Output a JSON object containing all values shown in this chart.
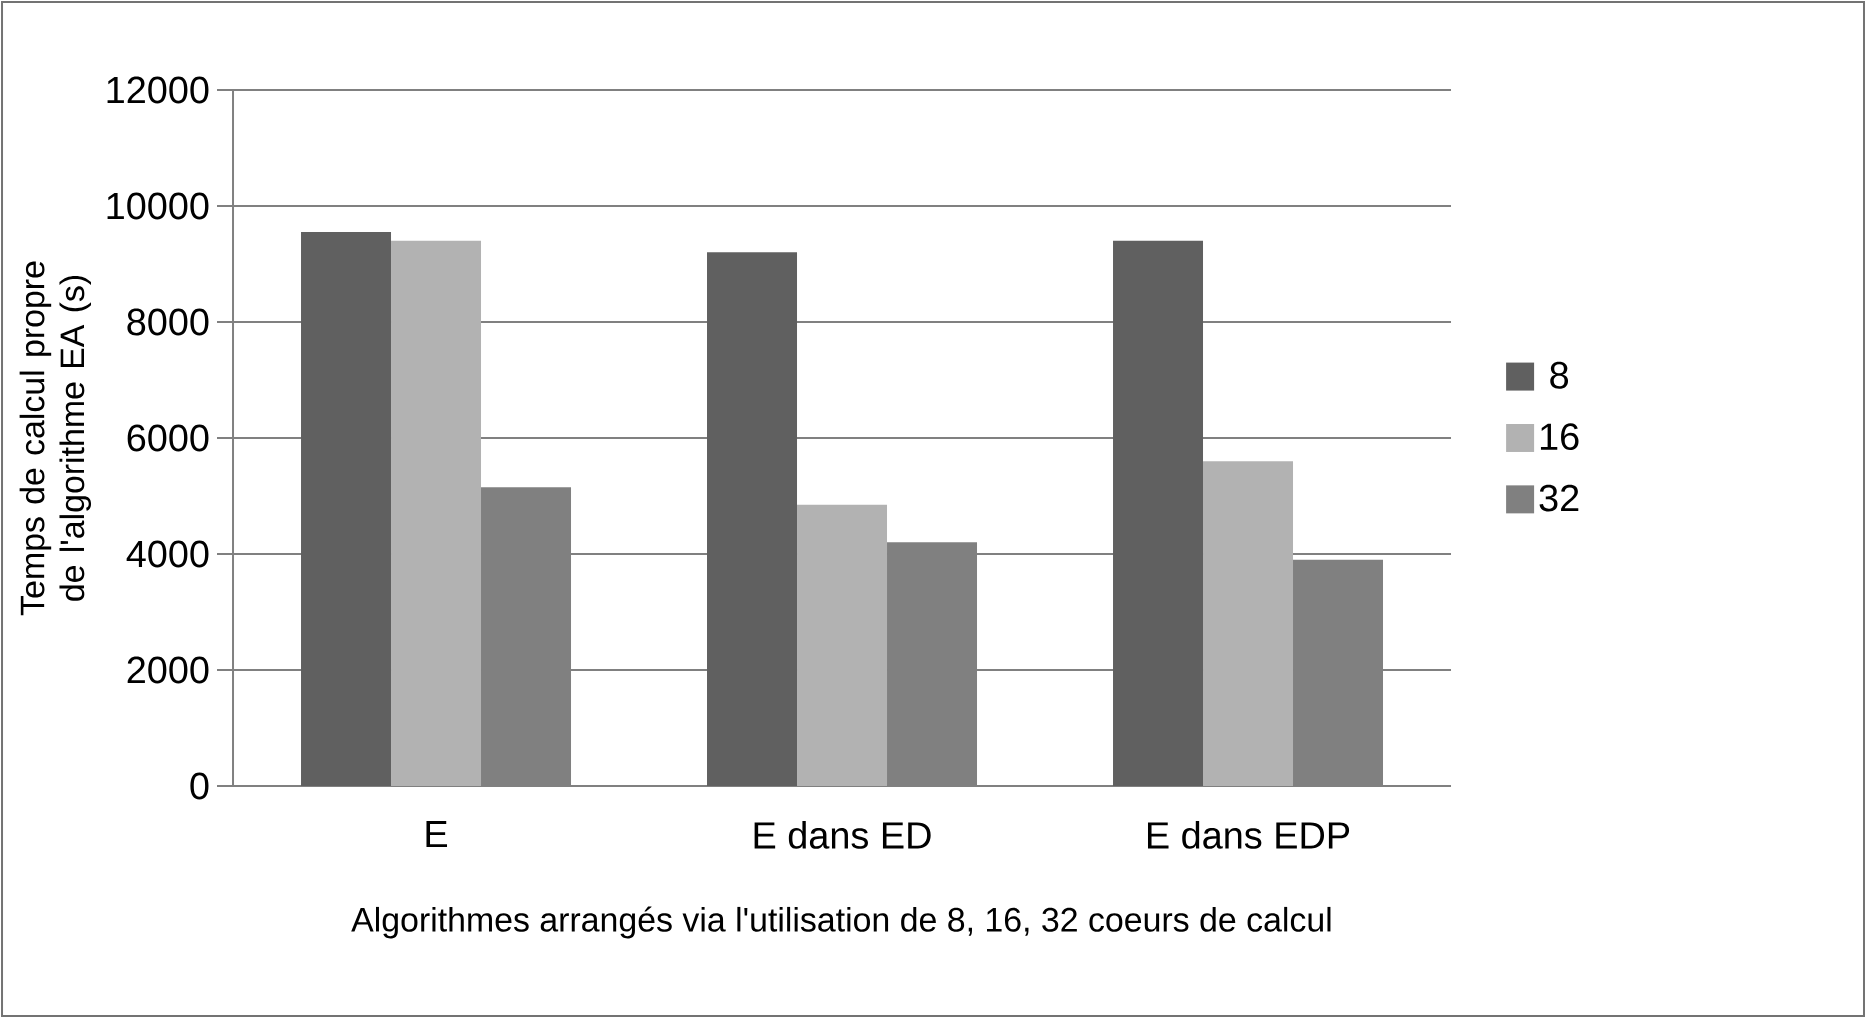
{
  "chart_data": {
    "type": "bar",
    "xlabel": "Algorithmes arrangés via l'utilisation de 8, 16, 32 coeurs de calcul",
    "ylabel": "Temps de calcul propre de l'algorithme EA (s)",
    "categories": [
      "E",
      "E dans ED",
      "E dans EDP"
    ],
    "series": [
      {
        "name": "8",
        "color": "#606060",
        "values": [
          9550,
          9200,
          9400
        ]
      },
      {
        "name": "16",
        "color": "#b2b2b2",
        "values": [
          9400,
          4850,
          5600
        ]
      },
      {
        "name": "32",
        "color": "#808080",
        "values": [
          5150,
          4200,
          3900
        ]
      }
    ],
    "ylim": [
      0,
      12000
    ],
    "yticks": [
      0,
      2000,
      4000,
      6000,
      8000,
      10000,
      12000
    ],
    "grid": "y",
    "legend": "right"
  }
}
